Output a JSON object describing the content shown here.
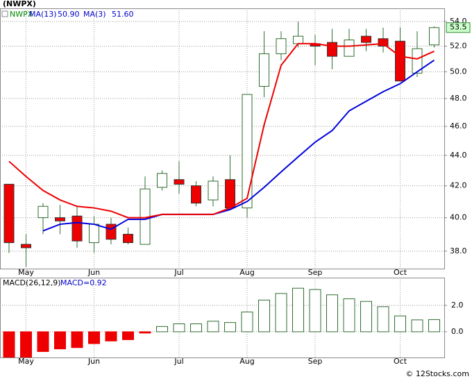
{
  "chart_data": [
    {
      "type": "candlestick",
      "title": "(NWPX)",
      "ticker": "NWPX",
      "ticker_color": "#008800",
      "categories": [
        null,
        "May",
        null,
        null,
        null,
        "Jun",
        null,
        null,
        null,
        null,
        "Jul",
        null,
        null,
        null,
        "Aug",
        null,
        null,
        null,
        "Sep",
        null,
        null,
        null,
        null,
        "Oct",
        null,
        null
      ],
      "open": [
        42.1,
        38.4,
        40.0,
        40.0,
        40.1,
        38.5,
        39.6,
        39.0,
        38.4,
        41.9,
        42.4,
        42.0,
        41.1,
        42.4,
        40.6,
        48.9,
        51.4,
        52.2,
        52.2,
        52.3,
        51.2,
        52.8,
        52.6,
        52.4,
        49.9,
        52.1
      ],
      "high": [
        42.1,
        39.0,
        40.9,
        40.8,
        40.7,
        40.1,
        40.0,
        39.4,
        42.6,
        43.0,
        43.6,
        42.3,
        42.6,
        44.0,
        48.3,
        53.2,
        53.2,
        54.0,
        52.9,
        53.4,
        53.4,
        53.4,
        53.5,
        53.5,
        53.2,
        53.6
      ],
      "low": [
        37.9,
        37.1,
        39.0,
        39.0,
        38.2,
        37.9,
        38.4,
        38.4,
        38.4,
        41.7,
        41.5,
        40.7,
        40.7,
        40.6,
        40.0,
        48.1,
        50.9,
        51.9,
        50.5,
        50.2,
        51.2,
        51.6,
        51.5,
        49.3,
        49.6,
        51.9
      ],
      "close": [
        38.5,
        38.2,
        40.7,
        39.8,
        38.6,
        39.6,
        38.7,
        38.5,
        41.8,
        42.8,
        42.1,
        40.9,
        42.3,
        40.6,
        48.3,
        51.4,
        52.6,
        52.8,
        52.0,
        51.2,
        52.5,
        52.3,
        52.0,
        49.3,
        51.8,
        53.5
      ],
      "up_color": "#ffffff",
      "down_color": "#ee0000",
      "body_stroke": "#2e6b2e",
      "series": [
        {
          "name": "MA(13)",
          "last_label": "50.90",
          "color": "#0000dd",
          "values": [
            null,
            null,
            39.2,
            39.6,
            39.7,
            39.6,
            39.3,
            39.9,
            39.9,
            40.2,
            40.2,
            40.2,
            40.2,
            40.5,
            41.0,
            41.9,
            42.9,
            43.9,
            44.9,
            45.7,
            47.1,
            47.8,
            48.5,
            49.1,
            50.0,
            50.9
          ]
        },
        {
          "name": "MA(3)",
          "last_label": "51.60",
          "color": "#ee0000",
          "values": [
            43.6,
            42.6,
            41.7,
            41.1,
            40.7,
            40.6,
            40.4,
            40.0,
            40.0,
            40.2,
            40.2,
            40.2,
            40.2,
            40.6,
            41.2,
            46.1,
            50.5,
            52.2,
            52.2,
            52.0,
            52.0,
            52.1,
            52.2,
            51.2,
            51.0,
            51.6
          ]
        }
      ],
      "log_scale": true,
      "ylim": [
        37.0,
        55.1
      ],
      "yticks": [
        {
          "value": 38,
          "label": "38.0"
        },
        {
          "value": 40,
          "label": "40.0"
        },
        {
          "value": 42,
          "label": "42.0"
        },
        {
          "value": 44,
          "label": "44.0"
        },
        {
          "value": 46,
          "label": "46.0"
        },
        {
          "value": 48,
          "label": "48.0"
        },
        {
          "value": 50,
          "label": "50.0"
        },
        {
          "value": 52,
          "label": "52.0"
        },
        {
          "value": 54,
          "label": "54.0"
        }
      ],
      "last_price": 53.5,
      "grid": true
    },
    {
      "type": "bar",
      "title": "MACD(26,12,9)",
      "subtitle": "MACD=0.92",
      "categories": [
        null,
        "May",
        null,
        null,
        null,
        "Jun",
        null,
        null,
        null,
        null,
        "Jul",
        null,
        null,
        null,
        "Aug",
        null,
        null,
        null,
        "Sep",
        null,
        null,
        null,
        null,
        "Oct",
        null,
        null
      ],
      "values": [
        -2.2,
        -2.2,
        -1.5,
        -1.3,
        -1.2,
        -0.9,
        -0.7,
        -0.6,
        -0.1,
        0.4,
        0.6,
        0.6,
        0.8,
        0.7,
        1.5,
        2.4,
        2.9,
        3.3,
        3.2,
        2.8,
        2.5,
        2.3,
        1.9,
        1.2,
        0.9,
        0.92
      ],
      "up_color": "#ffffff",
      "down_color": "#ee0000",
      "body_stroke": "#2e6b2e",
      "ylim": [
        -1.95,
        4.1
      ],
      "yticks": [
        {
          "value": 0,
          "label": "0.0"
        },
        {
          "value": 2,
          "label": "2.0"
        }
      ],
      "grid": true,
      "source": "© 12Stocks.com"
    }
  ]
}
